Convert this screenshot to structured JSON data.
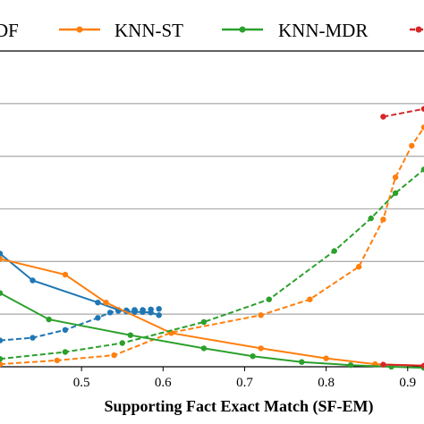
{
  "chart_data": {
    "type": "line",
    "xlabel": "Supporting Fact Exact Match (SF-EM)",
    "xlim": [
      0.4,
      0.92
    ],
    "ylim": [
      0,
      6
    ],
    "x_ticks": [
      "0.5",
      "0.6",
      "0.7",
      "0.8",
      "0.9"
    ],
    "x_tick_values": [
      0.5,
      0.6,
      0.7,
      0.8,
      0.9
    ],
    "gridlines_y": [
      1,
      2,
      3,
      4,
      5
    ],
    "grid": "horizontal",
    "legend_position": "top (cropped)",
    "legend": [
      {
        "label": "DF",
        "color": "#1f77b4"
      },
      {
        "label": "KNN-ST",
        "color": "#ff7f0e"
      },
      {
        "label": "KNN-MDR",
        "color": "#2ca02c"
      },
      {
        "label": "",
        "color": "#d62728"
      }
    ],
    "series": [
      {
        "color": "#1f77b4",
        "style": "solid",
        "points": [
          [
            0.4,
            2.15
          ],
          [
            0.44,
            1.64
          ],
          [
            0.52,
            1.22
          ],
          [
            0.545,
            1.08
          ],
          [
            0.555,
            1.05
          ],
          [
            0.565,
            1.04
          ],
          [
            0.575,
            1.04
          ],
          [
            0.585,
            1.03
          ],
          [
            0.595,
            0.98
          ]
        ]
      },
      {
        "color": "#1f77b4",
        "style": "dashed",
        "points": [
          [
            0.4,
            0.5
          ],
          [
            0.44,
            0.55
          ],
          [
            0.48,
            0.7
          ],
          [
            0.52,
            0.93
          ],
          [
            0.535,
            1.03
          ],
          [
            0.545,
            1.06
          ],
          [
            0.555,
            1.07
          ],
          [
            0.565,
            1.08
          ],
          [
            0.575,
            1.08
          ],
          [
            0.585,
            1.09
          ],
          [
            0.595,
            1.1
          ]
        ]
      },
      {
        "color": "#ff7f0e",
        "style": "solid",
        "points": [
          [
            0.4,
            2.05
          ],
          [
            0.48,
            1.75
          ],
          [
            0.53,
            1.22
          ],
          [
            0.61,
            0.64
          ],
          [
            0.72,
            0.35
          ],
          [
            0.8,
            0.16
          ],
          [
            0.86,
            0.05
          ],
          [
            0.92,
            0.02
          ]
        ]
      },
      {
        "color": "#ff7f0e",
        "style": "dashed",
        "points": [
          [
            0.4,
            0.05
          ],
          [
            0.47,
            0.12
          ],
          [
            0.54,
            0.22
          ],
          [
            0.61,
            0.65
          ],
          [
            0.72,
            0.98
          ],
          [
            0.78,
            1.28
          ],
          [
            0.84,
            1.9
          ],
          [
            0.87,
            2.8
          ],
          [
            0.885,
            3.6
          ],
          [
            0.905,
            4.2
          ],
          [
            0.92,
            4.55
          ]
        ]
      },
      {
        "color": "#2ca02c",
        "style": "solid",
        "points": [
          [
            0.4,
            1.4
          ],
          [
            0.46,
            0.9
          ],
          [
            0.56,
            0.6
          ],
          [
            0.65,
            0.35
          ],
          [
            0.71,
            0.2
          ],
          [
            0.77,
            0.09
          ],
          [
            0.83,
            0.03
          ],
          [
            0.88,
            0.0
          ],
          [
            0.92,
            -0.02
          ]
        ]
      },
      {
        "color": "#2ca02c",
        "style": "dashed",
        "points": [
          [
            0.4,
            0.15
          ],
          [
            0.48,
            0.28
          ],
          [
            0.55,
            0.45
          ],
          [
            0.65,
            0.85
          ],
          [
            0.73,
            1.28
          ],
          [
            0.81,
            2.2
          ],
          [
            0.855,
            2.82
          ],
          [
            0.885,
            3.3
          ],
          [
            0.92,
            3.75
          ]
        ]
      },
      {
        "color": "#d62728",
        "style": "dashed",
        "points": [
          [
            0.87,
            4.75
          ],
          [
            0.92,
            4.9
          ]
        ]
      },
      {
        "color": "#d62728",
        "style": "solid",
        "points": [
          [
            0.87,
            0.04
          ],
          [
            0.92,
            0.02
          ]
        ]
      }
    ]
  }
}
